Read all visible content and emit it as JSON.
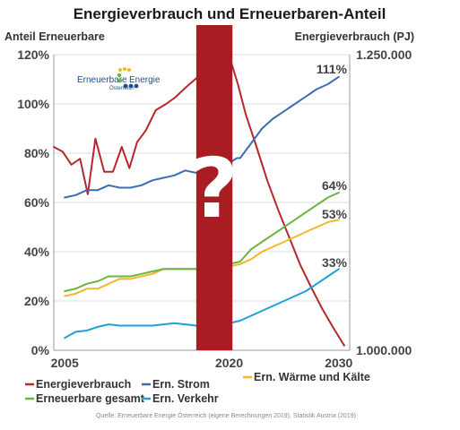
{
  "chart_data": {
    "type": "line",
    "title": "Energieverbrauch und Erneuerbaren-Anteil",
    "ylabel_left": "Anteil Erneuerbare",
    "ylabel_right": "Energieverbrauch (PJ)",
    "x_ticks": [
      "2005",
      "2020",
      "2030"
    ],
    "xlim": [
      2004,
      2031
    ],
    "ylim_left": [
      0,
      120
    ],
    "y_ticks_left": [
      "0%",
      "20%",
      "40%",
      "60%",
      "80%",
      "100%",
      "120%"
    ],
    "ylim_right": [
      1000000,
      1250000
    ],
    "y_ticks_right": [
      "1.000.000",
      "1.250.000"
    ],
    "uncertainty_band": {
      "from": 2017,
      "to": 2020.3,
      "color": "#a81c22",
      "symbol": "?"
    },
    "series": [
      {
        "name": "Energieverbrauch",
        "axis": "right",
        "color": "#b5282e",
        "points": [
          [
            2004,
            1172000
          ],
          [
            2004.8,
            1168000
          ],
          [
            2005.6,
            1157000
          ],
          [
            2006.4,
            1162000
          ],
          [
            2007.1,
            1132000
          ],
          [
            2007.8,
            1179000
          ],
          [
            2008.6,
            1151000
          ],
          [
            2009.4,
            1151000
          ],
          [
            2010.2,
            1172000
          ],
          [
            2010.9,
            1154000
          ],
          [
            2011.6,
            1176000
          ],
          [
            2012.4,
            1186000
          ],
          [
            2013.3,
            1203000
          ],
          [
            2014.2,
            1208000
          ],
          [
            2015.1,
            1214000
          ],
          [
            2016,
            1222000
          ],
          [
            2017,
            1230000
          ],
          [
            2018,
            1237000
          ],
          [
            2019,
            1243000
          ],
          [
            2020,
            1249000
          ],
          [
            2020.8,
            1225000
          ],
          [
            2021.5,
            1200000
          ],
          [
            2022.5,
            1172000
          ],
          [
            2023.5,
            1143000
          ],
          [
            2024.5,
            1118000
          ],
          [
            2025.5,
            1095000
          ],
          [
            2026.5,
            1072000
          ],
          [
            2027.5,
            1053000
          ],
          [
            2028.5,
            1035000
          ],
          [
            2029.5,
            1019000
          ],
          [
            2030.5,
            1004000
          ]
        ]
      },
      {
        "name": "Ern. Strom",
        "axis": "left",
        "color": "#3c6db3",
        "end_label": "111%",
        "points": [
          [
            2005,
            62
          ],
          [
            2006,
            63
          ],
          [
            2007,
            65
          ],
          [
            2008,
            65
          ],
          [
            2009,
            67
          ],
          [
            2010,
            66
          ],
          [
            2011,
            66
          ],
          [
            2012,
            67
          ],
          [
            2013,
            69
          ],
          [
            2014,
            70
          ],
          [
            2015,
            71
          ],
          [
            2016,
            73
          ],
          [
            2017,
            72
          ],
          [
            2018,
            73
          ],
          [
            2019,
            75
          ],
          [
            2020,
            76
          ],
          [
            2020.7,
            78
          ],
          [
            2021,
            78
          ],
          [
            2022,
            84
          ],
          [
            2023,
            90
          ],
          [
            2024,
            94
          ],
          [
            2025,
            97
          ],
          [
            2026,
            100
          ],
          [
            2027,
            103
          ],
          [
            2028,
            106
          ],
          [
            2029,
            108
          ],
          [
            2030,
            111
          ]
        ]
      },
      {
        "name": "Ern. Wärme und Kälte",
        "axis": "left",
        "color": "#f0b82a",
        "end_label": "53%",
        "points": [
          [
            2005,
            22
          ],
          [
            2006,
            23
          ],
          [
            2007,
            25
          ],
          [
            2008,
            25
          ],
          [
            2009,
            27
          ],
          [
            2010,
            29
          ],
          [
            2011,
            29
          ],
          [
            2012,
            30
          ],
          [
            2013,
            31
          ],
          [
            2014,
            33
          ],
          [
            2015,
            33
          ],
          [
            2016,
            33
          ],
          [
            2017,
            33
          ],
          [
            2018,
            33
          ],
          [
            2019,
            34
          ],
          [
            2020,
            34
          ],
          [
            2021,
            35
          ],
          [
            2022,
            37
          ],
          [
            2023,
            40
          ],
          [
            2024,
            42
          ],
          [
            2025,
            44
          ],
          [
            2026,
            46
          ],
          [
            2027,
            48
          ],
          [
            2028,
            50
          ],
          [
            2029,
            52
          ],
          [
            2030,
            53
          ]
        ]
      },
      {
        "name": "Erneuerbare gesamt",
        "axis": "left",
        "color": "#6db33f",
        "end_label": "64%",
        "points": [
          [
            2005,
            24
          ],
          [
            2006,
            25
          ],
          [
            2007,
            27
          ],
          [
            2008,
            28
          ],
          [
            2009,
            30
          ],
          [
            2010,
            30
          ],
          [
            2011,
            30
          ],
          [
            2012,
            31
          ],
          [
            2013,
            32
          ],
          [
            2014,
            33
          ],
          [
            2015,
            33
          ],
          [
            2016,
            33
          ],
          [
            2017,
            33
          ],
          [
            2018,
            33
          ],
          [
            2019,
            34
          ],
          [
            2020,
            35
          ],
          [
            2021,
            36
          ],
          [
            2022,
            41
          ],
          [
            2023,
            44
          ],
          [
            2024,
            47
          ],
          [
            2025,
            50
          ],
          [
            2026,
            53
          ],
          [
            2027,
            56
          ],
          [
            2028,
            59
          ],
          [
            2029,
            62
          ],
          [
            2030,
            64
          ]
        ]
      },
      {
        "name": "Ern. Verkehr",
        "axis": "left",
        "color": "#1ea0db",
        "end_label": "33%",
        "points": [
          [
            2005,
            5
          ],
          [
            2006,
            7.5
          ],
          [
            2007,
            8
          ],
          [
            2008,
            9.5
          ],
          [
            2009,
            10.5
          ],
          [
            2010,
            10
          ],
          [
            2011,
            10
          ],
          [
            2012,
            10
          ],
          [
            2013,
            10
          ],
          [
            2014,
            10.5
          ],
          [
            2015,
            11
          ],
          [
            2016,
            10.5
          ],
          [
            2017,
            10
          ],
          [
            2018,
            10
          ],
          [
            2019,
            10.5
          ],
          [
            2020,
            11
          ],
          [
            2021,
            12
          ],
          [
            2022,
            14
          ],
          [
            2023,
            16
          ],
          [
            2024,
            18
          ],
          [
            2025,
            20
          ],
          [
            2026,
            22
          ],
          [
            2027,
            24
          ],
          [
            2028,
            27
          ],
          [
            2029,
            30
          ],
          [
            2030,
            33
          ]
        ]
      }
    ],
    "legend_rows": [
      [
        "Energieverbrauch",
        "Ern. Strom",
        "Ern. Wärme und Kälte"
      ],
      [
        "Erneuerbare gesamt",
        "Ern. Verkehr"
      ]
    ],
    "source": "Quelle: Erneuerbare Energie Österreich (eigene Berechnungen 2019), Statistik Austria (2019)"
  },
  "logo": {
    "brand_left": "Erneuerbare",
    "brand_right": "Energie",
    "sub": "Österreich",
    "dot_colors": [
      "#f0b82a",
      "#6db33f",
      "#1ea0db",
      "#1f4e8c"
    ]
  }
}
